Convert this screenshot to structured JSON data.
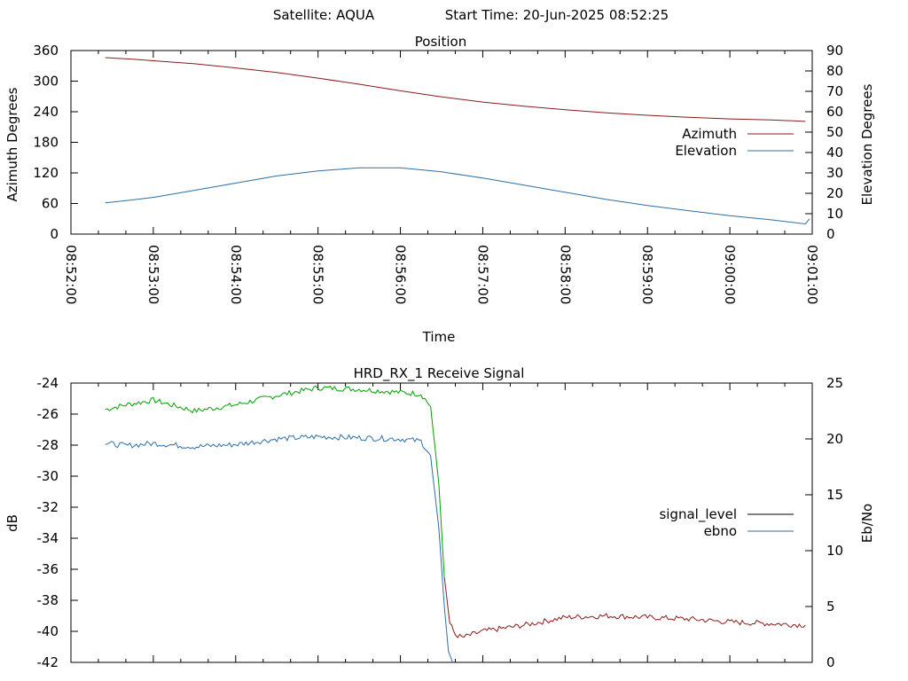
{
  "header": {
    "satellite_text": "Satellite: AQUA",
    "start_time_text": "Start Time: 20-Jun-2025 08:52:25"
  },
  "chart_data": [
    {
      "type": "line",
      "title": "Position",
      "xlabel": "Time",
      "ylabel": "Azimuth Degrees",
      "y2label": "Elevation Degrees",
      "xlim": [
        "08:52:00",
        "09:01:00"
      ],
      "xticks": [
        "08:52:00",
        "08:53:00",
        "08:54:00",
        "08:55:00",
        "08:56:00",
        "08:57:00",
        "08:58:00",
        "08:59:00",
        "09:00:00",
        "09:01:00"
      ],
      "ylim": [
        0,
        360
      ],
      "yticks": [
        0,
        60,
        120,
        180,
        240,
        300,
        360
      ],
      "y2lim": [
        0,
        90
      ],
      "y2ticks": [
        0,
        10,
        20,
        30,
        40,
        50,
        60,
        70,
        80,
        90
      ],
      "legend_position": "right",
      "series": [
        {
          "name": "Azimuth",
          "axis": "left",
          "color": "#8b1a1a",
          "x": [
            "08:52:25",
            "08:52:45",
            "08:53:00",
            "08:53:30",
            "08:54:00",
            "08:54:30",
            "08:55:00",
            "08:55:30",
            "08:56:00",
            "08:56:30",
            "08:57:00",
            "08:57:30",
            "08:58:00",
            "08:58:30",
            "08:59:00",
            "08:59:30",
            "09:00:00",
            "09:00:30",
            "09:00:55"
          ],
          "values": [
            346,
            343,
            340,
            334,
            326,
            317,
            306,
            294,
            281,
            269,
            259,
            251,
            244,
            238,
            233,
            229,
            226,
            224,
            221
          ]
        },
        {
          "name": "Elevation",
          "axis": "right",
          "color": "#2b6fa8",
          "x": [
            "08:52:25",
            "08:52:45",
            "08:53:00",
            "08:53:30",
            "08:54:00",
            "08:54:30",
            "08:55:00",
            "08:55:30",
            "08:56:00",
            "08:56:30",
            "08:57:00",
            "08:57:30",
            "08:58:00",
            "08:58:30",
            "08:59:00",
            "08:59:30",
            "09:00:00",
            "09:00:30",
            "09:00:55",
            "09:00:58"
          ],
          "values": [
            15.3,
            16.8,
            18,
            21.5,
            25,
            28.5,
            31,
            32.5,
            32.5,
            30.5,
            27.5,
            24,
            20.5,
            17,
            14,
            11.5,
            9,
            7,
            5,
            7.5
          ]
        }
      ]
    },
    {
      "type": "line",
      "title": "HRD_RX_1 Receive Signal",
      "xlabel": "",
      "ylabel": "dB",
      "y2label": "Eb/No",
      "xlim": [
        "08:52:00",
        "09:01:00"
      ],
      "ylim": [
        -42,
        -24
      ],
      "yticks": [
        -42,
        -40,
        -38,
        -36,
        -34,
        -32,
        -30,
        -28,
        -26,
        -24
      ],
      "y2lim": [
        0,
        25
      ],
      "y2ticks": [
        0,
        5,
        10,
        15,
        20,
        25
      ],
      "legend_position": "right",
      "legend": [
        {
          "name": "signal_level",
          "color": "#000000"
        },
        {
          "name": "ebno",
          "color": "#2b6fa8"
        }
      ],
      "series": [
        {
          "name": "signal_level",
          "axis": "left",
          "x": [
            "08:52:25",
            "08:52:40",
            "08:53:00",
            "08:53:30",
            "08:54:00",
            "08:54:30",
            "08:55:00",
            "08:55:30",
            "08:56:00",
            "08:56:15",
            "08:56:22",
            "08:56:28",
            "08:56:32",
            "08:56:36",
            "08:56:40",
            "08:56:45",
            "08:57:00",
            "08:57:30",
            "08:58:00",
            "08:58:30",
            "08:59:00",
            "08:59:30",
            "09:00:00",
            "09:00:30",
            "09:00:55"
          ],
          "values": [
            -25.7,
            -25.4,
            -25.1,
            -25.8,
            -25.4,
            -24.8,
            -24.3,
            -24.4,
            -24.6,
            -24.7,
            -25.5,
            -30.5,
            -36.5,
            -39.5,
            -40.2,
            -40.4,
            -40.0,
            -39.6,
            -39.1,
            -39.0,
            -39.1,
            -39.2,
            -39.4,
            -39.5,
            -39.6
          ],
          "segments": [
            {
              "from": 0,
              "to": 12,
              "color": "#00a000"
            },
            {
              "from": 12,
              "to": 24,
              "color": "#8b1a1a"
            }
          ]
        },
        {
          "name": "ebno",
          "axis": "right",
          "color": "#2b6fa8",
          "x": [
            "08:52:25",
            "08:52:40",
            "08:53:00",
            "08:53:30",
            "08:54:00",
            "08:54:30",
            "08:55:00",
            "08:55:30",
            "08:56:00",
            "08:56:15",
            "08:56:22",
            "08:56:28",
            "08:56:32",
            "08:56:35",
            "08:56:38"
          ],
          "values": [
            19.6,
            19.4,
            19.6,
            19.3,
            19.5,
            20.0,
            20.2,
            20.1,
            20.0,
            19.8,
            18.5,
            12.0,
            5.0,
            1.0,
            0.0
          ]
        }
      ]
    }
  ]
}
